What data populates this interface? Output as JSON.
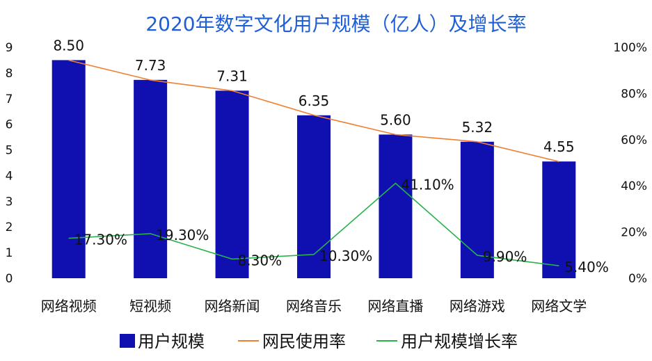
{
  "chart_data": {
    "type": "bar",
    "title": "2020年数字文化用户规模（亿人）及增长率",
    "categories": [
      "网络视频",
      "短视频",
      "网络新闻",
      "网络音乐",
      "网络直播",
      "网络游戏",
      "网络文学"
    ],
    "series": [
      {
        "name": "用户规模",
        "type": "bar",
        "axis": "left",
        "values": [
          8.5,
          7.73,
          7.31,
          6.35,
          5.6,
          5.32,
          4.55
        ],
        "labels": [
          "8.50",
          "7.73",
          "7.31",
          "6.35",
          "5.60",
          "5.32",
          "4.55"
        ],
        "color": "#1010b0"
      },
      {
        "name": "网民使用率",
        "type": "line",
        "axis": "right",
        "values": [
          0.944,
          0.858,
          0.812,
          0.706,
          0.622,
          0.591,
          0.505
        ],
        "color": "#f07f30"
      },
      {
        "name": "用户规模增长率",
        "type": "line",
        "axis": "right",
        "values": [
          0.173,
          0.193,
          0.083,
          0.103,
          0.411,
          0.099,
          0.054
        ],
        "labels": [
          "17.30%",
          "19.30%",
          "8.30%",
          "10.30%",
          "41.10%",
          "9.90%",
          "5.40%"
        ],
        "color": "#27b24a"
      }
    ],
    "y_left": {
      "range": [
        0,
        9
      ],
      "ticks": [
        "0",
        "1",
        "2",
        "3",
        "4",
        "5",
        "6",
        "7",
        "8",
        "9"
      ]
    },
    "y_right": {
      "range": [
        0,
        1
      ],
      "ticks": [
        "0%",
        "20%",
        "40%",
        "60%",
        "80%",
        "100%"
      ]
    },
    "grid": false,
    "legend_position": "bottom"
  }
}
